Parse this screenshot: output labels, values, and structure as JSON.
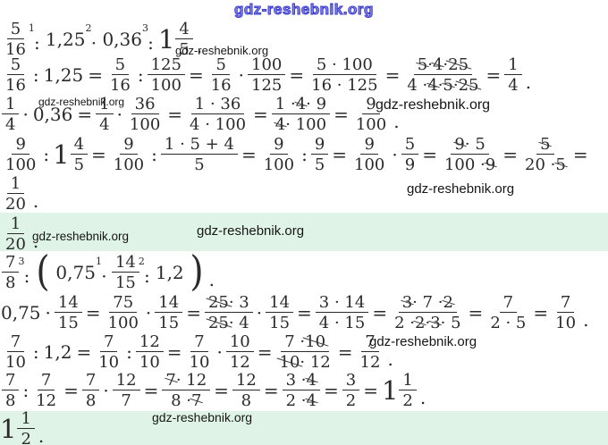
{
  "watermark": {
    "text": "gdz-reshebnik.org"
  },
  "colors": {
    "highlight_green": "#dff4e7",
    "header_blue": "#3939cf",
    "ink": "#2a2a2a"
  },
  "problem1": {
    "given": [
      {
        "t": "frac",
        "n": [
          {
            "v": "5"
          }
        ],
        "d": [
          {
            "v": "16"
          }
        ]
      },
      {
        "t": "op",
        "v": ":",
        "sup": "1"
      },
      {
        "t": "txt",
        "v": "1,25"
      },
      {
        "t": "op",
        "v": "·",
        "sup": "2"
      },
      {
        "t": "txt",
        "v": "0,36"
      },
      {
        "t": "op",
        "v": ":",
        "sup": "3"
      },
      {
        "t": "mix",
        "w": "1",
        "n": "4",
        "d": "5"
      },
      {
        "t": "txt",
        "v": ".",
        "c": "dot"
      }
    ],
    "step_divide_125": [
      {
        "t": "frac",
        "n": [
          {
            "v": "5"
          }
        ],
        "d": [
          {
            "v": "16"
          }
        ]
      },
      {
        "t": "txt",
        "v": ":"
      },
      {
        "t": "txt",
        "v": "1,25"
      },
      {
        "t": "txt",
        "v": "="
      },
      {
        "t": "frac",
        "n": [
          {
            "v": "5"
          }
        ],
        "d": [
          {
            "v": "16"
          }
        ]
      },
      {
        "t": "txt",
        "v": ":"
      },
      {
        "t": "frac",
        "n": [
          {
            "v": "125"
          }
        ],
        "d": [
          {
            "v": "100"
          }
        ]
      },
      {
        "t": "txt",
        "v": "="
      },
      {
        "t": "frac",
        "n": [
          {
            "v": "5"
          }
        ],
        "d": [
          {
            "v": "16"
          }
        ]
      },
      {
        "t": "txt",
        "v": "·"
      },
      {
        "t": "frac",
        "n": [
          {
            "v": "100"
          }
        ],
        "d": [
          {
            "v": "125"
          }
        ]
      },
      {
        "t": "txt",
        "v": "="
      },
      {
        "t": "frac",
        "n": [
          {
            "v": "5 · 100"
          }
        ],
        "d": [
          {
            "v": "16 · 125"
          }
        ]
      },
      {
        "t": "txt",
        "v": "="
      },
      {
        "t": "frac",
        "n": [
          {
            "v": "5",
            "x": true
          },
          {
            "v": " · "
          },
          {
            "v": "4",
            "x": true
          },
          {
            "v": " · "
          },
          {
            "v": "25",
            "x": true
          }
        ],
        "d": [
          {
            "v": "4 · "
          },
          {
            "v": "4",
            "x": true
          },
          {
            "v": " · "
          },
          {
            "v": "5",
            "x": true
          },
          {
            "v": " · "
          },
          {
            "v": "25",
            "x": true
          }
        ]
      },
      {
        "t": "txt",
        "v": "="
      },
      {
        "t": "frac",
        "n": [
          {
            "v": "1"
          }
        ],
        "d": [
          {
            "v": "4"
          }
        ]
      },
      {
        "t": "txt",
        "v": ".",
        "c": "dot"
      }
    ],
    "step_multiply_036": [
      {
        "t": "frac",
        "n": [
          {
            "v": "1"
          }
        ],
        "d": [
          {
            "v": "4"
          }
        ]
      },
      {
        "t": "txt",
        "v": "·"
      },
      {
        "t": "txt",
        "v": "0,36"
      },
      {
        "t": "txt",
        "v": "="
      },
      {
        "t": "frac",
        "n": [
          {
            "v": "1"
          }
        ],
        "d": [
          {
            "v": "4"
          }
        ]
      },
      {
        "t": "txt",
        "v": "·"
      },
      {
        "t": "frac",
        "n": [
          {
            "v": "36"
          }
        ],
        "d": [
          {
            "v": "100"
          }
        ]
      },
      {
        "t": "txt",
        "v": "="
      },
      {
        "t": "frac",
        "n": [
          {
            "v": "1 · 36"
          }
        ],
        "d": [
          {
            "v": "4 · 100"
          }
        ]
      },
      {
        "t": "txt",
        "v": "="
      },
      {
        "t": "frac",
        "n": [
          {
            "v": "1 · "
          },
          {
            "v": "4",
            "x": true
          },
          {
            "v": " · 9"
          }
        ],
        "d": [
          {
            "v": "4",
            "x": true
          },
          {
            "v": " · 100"
          }
        ]
      },
      {
        "t": "txt",
        "v": "="
      },
      {
        "t": "frac",
        "n": [
          {
            "v": "9"
          }
        ],
        "d": [
          {
            "v": "100"
          }
        ]
      },
      {
        "t": "txt",
        "v": ".",
        "c": "dot"
      }
    ],
    "step_divide_mixed": [
      {
        "t": "frac",
        "n": [
          {
            "v": "9"
          }
        ],
        "d": [
          {
            "v": "100"
          }
        ]
      },
      {
        "t": "txt",
        "v": ":"
      },
      {
        "t": "mix",
        "w": "1",
        "n": "4",
        "d": "5"
      },
      {
        "t": "txt",
        "v": "="
      },
      {
        "t": "frac",
        "n": [
          {
            "v": "9"
          }
        ],
        "d": [
          {
            "v": "100"
          }
        ]
      },
      {
        "t": "txt",
        "v": ":"
      },
      {
        "t": "frac",
        "n": [
          {
            "v": "1 · 5 + 4"
          }
        ],
        "d": [
          {
            "v": "5"
          }
        ]
      },
      {
        "t": "txt",
        "v": "="
      },
      {
        "t": "frac",
        "n": [
          {
            "v": "9"
          }
        ],
        "d": [
          {
            "v": "100"
          }
        ]
      },
      {
        "t": "txt",
        "v": ":"
      },
      {
        "t": "frac",
        "n": [
          {
            "v": "9"
          }
        ],
        "d": [
          {
            "v": "5"
          }
        ]
      },
      {
        "t": "txt",
        "v": "="
      },
      {
        "t": "frac",
        "n": [
          {
            "v": "9"
          }
        ],
        "d": [
          {
            "v": "100"
          }
        ]
      },
      {
        "t": "txt",
        "v": "·"
      },
      {
        "t": "frac",
        "n": [
          {
            "v": "5"
          }
        ],
        "d": [
          {
            "v": "9"
          }
        ]
      },
      {
        "t": "txt",
        "v": "="
      },
      {
        "t": "frac",
        "n": [
          {
            "v": "9",
            "x": true
          },
          {
            "v": " · 5"
          }
        ],
        "d": [
          {
            "v": "100 · "
          },
          {
            "v": "9",
            "x": true
          }
        ]
      },
      {
        "t": "txt",
        "v": "="
      },
      {
        "t": "frac",
        "n": [
          {
            "v": "5",
            "x": true
          }
        ],
        "d": [
          {
            "v": "20 · "
          },
          {
            "v": "5",
            "x": true
          }
        ]
      },
      {
        "t": "txt",
        "v": "="
      }
    ],
    "result": [
      {
        "t": "frac",
        "n": [
          {
            "v": "1"
          }
        ],
        "d": [
          {
            "v": "20"
          }
        ]
      },
      {
        "t": "txt",
        "v": ".",
        "c": "dot"
      }
    ],
    "answer": [
      {
        "t": "frac",
        "n": [
          {
            "v": "1"
          }
        ],
        "d": [
          {
            "v": "20"
          }
        ]
      },
      {
        "t": "txt",
        "v": ".",
        "c": "dot"
      }
    ]
  },
  "problem2": {
    "given": [
      {
        "t": "frac",
        "n": [
          {
            "v": "7"
          }
        ],
        "d": [
          {
            "v": "8"
          }
        ]
      },
      {
        "t": "op",
        "v": ":",
        "sup": "3"
      },
      {
        "t": "par",
        "v": "("
      },
      {
        "t": "txt",
        "v": "0,75"
      },
      {
        "t": "op",
        "v": "·",
        "sup": "1"
      },
      {
        "t": "frac",
        "n": [
          {
            "v": "14"
          }
        ],
        "d": [
          {
            "v": "15"
          }
        ]
      },
      {
        "t": "op",
        "v": ":",
        "sup": "2"
      },
      {
        "t": "txt",
        "v": "1,2"
      },
      {
        "t": "par",
        "v": ")"
      },
      {
        "t": "txt",
        "v": ".",
        "c": "dot"
      }
    ],
    "step_multiply": [
      {
        "t": "txt",
        "v": "0,75"
      },
      {
        "t": "txt",
        "v": "·"
      },
      {
        "t": "frac",
        "n": [
          {
            "v": "14"
          }
        ],
        "d": [
          {
            "v": "15"
          }
        ]
      },
      {
        "t": "txt",
        "v": "="
      },
      {
        "t": "frac",
        "n": [
          {
            "v": "75"
          }
        ],
        "d": [
          {
            "v": "100"
          }
        ]
      },
      {
        "t": "txt",
        "v": "·"
      },
      {
        "t": "frac",
        "n": [
          {
            "v": "14"
          }
        ],
        "d": [
          {
            "v": "15"
          }
        ]
      },
      {
        "t": "txt",
        "v": "="
      },
      {
        "t": "frac",
        "n": [
          {
            "v": "25",
            "x": true
          },
          {
            "v": " · 3"
          }
        ],
        "d": [
          {
            "v": "25",
            "x": true
          },
          {
            "v": " · 4"
          }
        ]
      },
      {
        "t": "txt",
        "v": "·"
      },
      {
        "t": "frac",
        "n": [
          {
            "v": "14"
          }
        ],
        "d": [
          {
            "v": "15"
          }
        ]
      },
      {
        "t": "txt",
        "v": "="
      },
      {
        "t": "frac",
        "n": [
          {
            "v": "3 · 14"
          }
        ],
        "d": [
          {
            "v": "4 · 15"
          }
        ]
      },
      {
        "t": "txt",
        "v": "="
      },
      {
        "t": "frac",
        "n": [
          {
            "v": "3",
            "x": true
          },
          {
            "v": " · 7 · "
          },
          {
            "v": "2",
            "x": true
          }
        ],
        "d": [
          {
            "v": "2 · "
          },
          {
            "v": "2",
            "x": true
          },
          {
            "v": " · "
          },
          {
            "v": "3",
            "x": true
          },
          {
            "v": " · 5"
          }
        ]
      },
      {
        "t": "txt",
        "v": "="
      },
      {
        "t": "frac",
        "n": [
          {
            "v": "7"
          }
        ],
        "d": [
          {
            "v": "2 · 5"
          }
        ]
      },
      {
        "t": "txt",
        "v": "="
      },
      {
        "t": "frac",
        "n": [
          {
            "v": "7"
          }
        ],
        "d": [
          {
            "v": "10"
          }
        ]
      },
      {
        "t": "txt",
        "v": ".",
        "c": "dot"
      }
    ],
    "step_divide_12": [
      {
        "t": "frac",
        "n": [
          {
            "v": "7"
          }
        ],
        "d": [
          {
            "v": "10"
          }
        ]
      },
      {
        "t": "txt",
        "v": ":"
      },
      {
        "t": "txt",
        "v": "1,2"
      },
      {
        "t": "txt",
        "v": "="
      },
      {
        "t": "frac",
        "n": [
          {
            "v": "7"
          }
        ],
        "d": [
          {
            "v": "10"
          }
        ]
      },
      {
        "t": "txt",
        "v": ":"
      },
      {
        "t": "frac",
        "n": [
          {
            "v": "12"
          }
        ],
        "d": [
          {
            "v": "10"
          }
        ]
      },
      {
        "t": "txt",
        "v": "="
      },
      {
        "t": "frac",
        "n": [
          {
            "v": "7"
          }
        ],
        "d": [
          {
            "v": "10"
          }
        ]
      },
      {
        "t": "txt",
        "v": "·"
      },
      {
        "t": "frac",
        "n": [
          {
            "v": "10"
          }
        ],
        "d": [
          {
            "v": "12"
          }
        ]
      },
      {
        "t": "txt",
        "v": "="
      },
      {
        "t": "frac",
        "n": [
          {
            "v": "7 · "
          },
          {
            "v": "10",
            "x": true
          }
        ],
        "d": [
          {
            "v": "10",
            "x": true
          },
          {
            "v": " · 12"
          }
        ]
      },
      {
        "t": "txt",
        "v": "="
      },
      {
        "t": "frac",
        "n": [
          {
            "v": "7"
          }
        ],
        "d": [
          {
            "v": "12"
          }
        ]
      },
      {
        "t": "txt",
        "v": ".",
        "c": "dot"
      }
    ],
    "step_final": [
      {
        "t": "frac",
        "n": [
          {
            "v": "7"
          }
        ],
        "d": [
          {
            "v": "8"
          }
        ]
      },
      {
        "t": "txt",
        "v": ":"
      },
      {
        "t": "frac",
        "n": [
          {
            "v": "7"
          }
        ],
        "d": [
          {
            "v": "12"
          }
        ]
      },
      {
        "t": "txt",
        "v": "="
      },
      {
        "t": "frac",
        "n": [
          {
            "v": "7"
          }
        ],
        "d": [
          {
            "v": "8"
          }
        ]
      },
      {
        "t": "txt",
        "v": "·"
      },
      {
        "t": "frac",
        "n": [
          {
            "v": "12"
          }
        ],
        "d": [
          {
            "v": "7"
          }
        ]
      },
      {
        "t": "txt",
        "v": "="
      },
      {
        "t": "frac",
        "n": [
          {
            "v": "7",
            "x": true
          },
          {
            "v": " · 12"
          }
        ],
        "d": [
          {
            "v": "8 · "
          },
          {
            "v": "7",
            "x": true
          }
        ]
      },
      {
        "t": "txt",
        "v": "="
      },
      {
        "t": "frac",
        "n": [
          {
            "v": "12"
          }
        ],
        "d": [
          {
            "v": "8"
          }
        ]
      },
      {
        "t": "txt",
        "v": "="
      },
      {
        "t": "frac",
        "n": [
          {
            "v": "3 · "
          },
          {
            "v": "4",
            "x": true
          }
        ],
        "d": [
          {
            "v": "2 · "
          },
          {
            "v": "4",
            "x": true
          }
        ]
      },
      {
        "t": "txt",
        "v": "="
      },
      {
        "t": "frac",
        "n": [
          {
            "v": "3"
          }
        ],
        "d": [
          {
            "v": "2"
          }
        ]
      },
      {
        "t": "txt",
        "v": "="
      },
      {
        "t": "mix",
        "w": "1",
        "n": "1",
        "d": "2"
      },
      {
        "t": "txt",
        "v": ".",
        "c": "dot"
      }
    ],
    "answer": [
      {
        "t": "mix",
        "w": "1",
        "n": "1",
        "d": "2"
      },
      {
        "t": "txt",
        "v": ".",
        "c": "dot"
      }
    ]
  }
}
